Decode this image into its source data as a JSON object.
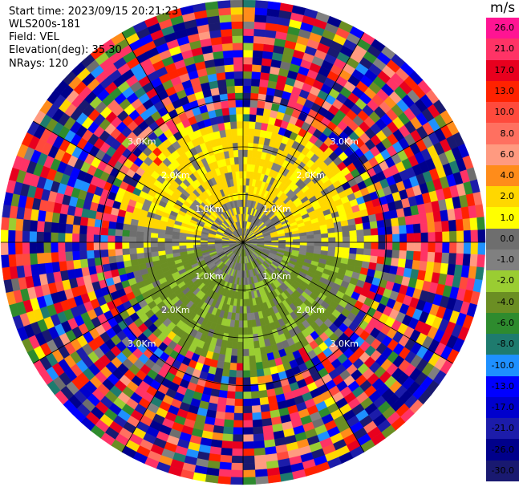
{
  "info": {
    "start_time": "Start time: 2023/09/15 20:21:23",
    "instrument": "WLS200s-181",
    "field": "Field: VEL",
    "elevation": "Elevation(deg): 35.30",
    "nrays": "NRays: 120"
  },
  "colorbar": {
    "unit": "m/s",
    "levels": [
      26.0,
      21.0,
      17.0,
      13.0,
      10.0,
      8.0,
      6.0,
      4.0,
      2.0,
      1.0,
      0.0,
      -1.0,
      -2.0,
      -4.0,
      -6.0,
      -8.0,
      -10.0,
      -13.0,
      -17.0,
      -21.0,
      -26.0,
      -30.0
    ],
    "labels": [
      "26.0",
      "21.0",
      "17.0",
      "13.0",
      "10.0",
      "8.0",
      "6.0",
      "4.0",
      "2.0",
      "1.0",
      "0.0",
      "-1.0",
      "-2.0",
      "-4.0",
      "-6.0",
      "-8.0",
      "-10.0",
      "-13.0",
      "-17.0",
      "-21.0",
      "-26.0",
      "-30.0"
    ],
    "colors": [
      "#ff1493",
      "#ff3366",
      "#e8001e",
      "#ff2200",
      "#ff4a3c",
      "#ff7060",
      "#ff9a80",
      "#ff8c1a",
      "#ffd700",
      "#ffff00",
      "#6e6e6e",
      "#808080",
      "#9acd32",
      "#6b8e23",
      "#2e8b2e",
      "#1e7b6e",
      "#1e90ff",
      "#0000ff",
      "#0000cd",
      "#1c1caa",
      "#00008b",
      "#191970"
    ]
  },
  "chart_data": {
    "type": "heatmap",
    "projection": "polar PPI (plan position indicator)",
    "field": "VEL",
    "units": "m/s",
    "elevation_deg": 35.3,
    "n_rays": 120,
    "range_rings_km": [
      1.0,
      2.0,
      3.0
    ],
    "range_ring_labels": [
      "1.0Km",
      "2.0Km",
      "3.0Km"
    ],
    "value_range": [
      -30.0,
      26.0
    ],
    "pattern": {
      "inner_region_km": [
        0,
        2.6
      ],
      "north_sector_values_m_s": [
        1.0,
        4.0
      ],
      "south_sector_values_m_s": [
        -4.0,
        -1.0
      ],
      "near_center_values_m_s": [
        -1.0,
        1.0
      ],
      "outer_region": "noise, all values from -30 to 26"
    }
  }
}
